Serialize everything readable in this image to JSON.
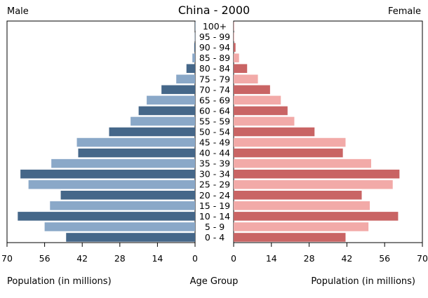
{
  "chart_data": {
    "type": "bar",
    "title": "China - 2000",
    "left_label": "Male",
    "right_label": "Female",
    "xlabel_left": "Population (in millions)",
    "xlabel_center": "Age Group",
    "xlabel_right": "Population (in millions)",
    "xlim": [
      0,
      70
    ],
    "x_ticks": [
      70,
      56,
      42,
      28,
      14,
      0
    ],
    "x_ticks_right": [
      0,
      14,
      28,
      42,
      56,
      70
    ],
    "categories": [
      "0 - 4",
      "5 - 9",
      "10 - 14",
      "15 - 19",
      "20 - 24",
      "25 - 29",
      "30 - 34",
      "35 - 39",
      "40 - 44",
      "45 - 49",
      "50 - 54",
      "55 - 59",
      "60 - 64",
      "65 - 69",
      "70 - 74",
      "75 - 79",
      "80 - 84",
      "85 - 89",
      "90 - 94",
      "95 - 99",
      "100+"
    ],
    "series": [
      {
        "name": "Male",
        "values": [
          48.0,
          56.0,
          66.0,
          54.0,
          50.0,
          62.0,
          65.0,
          53.5,
          43.5,
          44.0,
          32.0,
          24.0,
          21.0,
          18.0,
          12.5,
          7.0,
          3.2,
          1.0,
          0.3,
          0.1,
          0.02
        ]
      },
      {
        "name": "Female",
        "values": [
          41.5,
          50.0,
          61.0,
          50.5,
          47.5,
          59.0,
          61.5,
          51.0,
          40.5,
          41.5,
          30.0,
          22.5,
          20.0,
          17.5,
          13.5,
          9.0,
          5.0,
          2.0,
          0.7,
          0.2,
          0.05
        ]
      }
    ],
    "colors": {
      "male_dark": "#456789",
      "male_light": "#8aa8c8",
      "female_dark": "#c96464",
      "female_light": "#f2aaa8"
    },
    "grid": false,
    "legend": "none"
  }
}
